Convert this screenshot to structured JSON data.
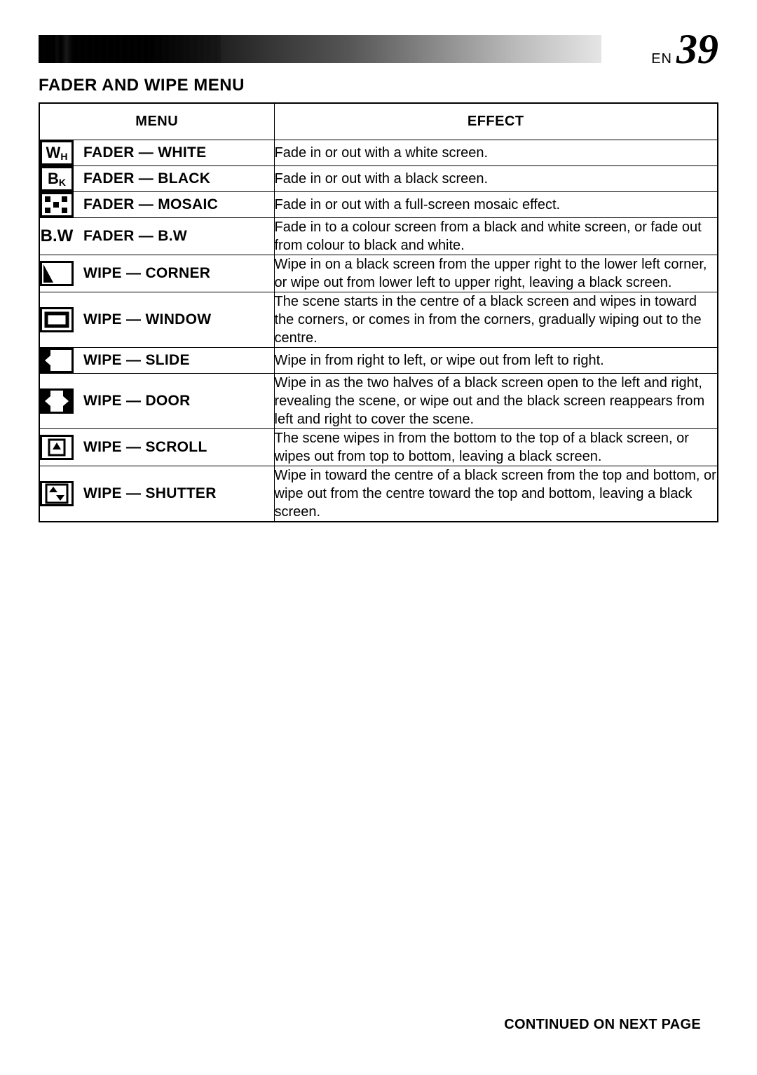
{
  "header": {
    "en_label": "EN",
    "page_number": "39"
  },
  "section_title": "FADER AND WIPE MENU",
  "table": {
    "header_menu": "MENU",
    "header_effect": "EFFECT",
    "rows": [
      {
        "icon_kind": "text",
        "icon_text_main": "W",
        "icon_text_sub": "H",
        "label": "FADER — WHITE",
        "effect": "Fade in or out with a white screen."
      },
      {
        "icon_kind": "text",
        "icon_text_main": "B",
        "icon_text_sub": "K",
        "label": "FADER — BLACK",
        "effect": "Fade in or out with a black screen."
      },
      {
        "icon_kind": "mosaic",
        "label": "FADER — MOSAIC",
        "effect": "Fade in or out with a full-screen mosaic effect."
      },
      {
        "icon_kind": "bw",
        "bw_text": "B.W",
        "label": "FADER — B.W",
        "effect": "Fade in to a colour screen from a black and white screen, or fade out from colour to black and white."
      },
      {
        "icon_kind": "corner",
        "label": "WIPE — CORNER",
        "effect": "Wipe in on a black screen from the upper right to the lower left corner, or wipe out from lower left to upper right, leaving a black screen."
      },
      {
        "icon_kind": "window",
        "label": "WIPE — WINDOW",
        "effect": "The scene starts in the centre of a black screen and wipes in toward the corners, or comes in from the corners, gradually wiping out to the centre."
      },
      {
        "icon_kind": "slide",
        "label": "WIPE — SLIDE",
        "effect": "Wipe in from right to left, or wipe out from left to right."
      },
      {
        "icon_kind": "door",
        "label": "WIPE — DOOR",
        "effect": "Wipe in as the two halves of a black screen open to the left and right, revealing the scene, or wipe out and the black screen reappears from left and right to cover the scene."
      },
      {
        "icon_kind": "scroll",
        "label": "WIPE — SCROLL",
        "effect": "The scene wipes in from the bottom to the top of a black screen, or wipes out from top to bottom, leaving a black screen."
      },
      {
        "icon_kind": "shutter",
        "label": "WIPE — SHUTTER",
        "effect": "Wipe in toward the centre of a black screen from the top and bottom, or wipe out from the centre toward the top and bottom, leaving a black screen."
      }
    ]
  },
  "footer": "CONTINUED ON NEXT PAGE"
}
